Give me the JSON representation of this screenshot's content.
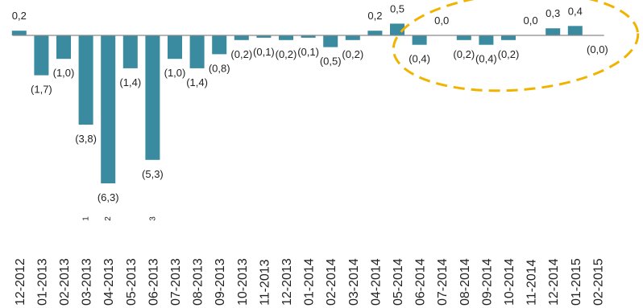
{
  "chart_data": {
    "type": "bar",
    "title": "",
    "xlabel": "",
    "ylabel": "",
    "ylim": [
      -6.3,
      0.5
    ],
    "grid": false,
    "legend": "none",
    "colors": {
      "bar": "#3a8aa0",
      "axis": "#8a8a8a",
      "highlight": "#f0b400"
    },
    "categories": [
      "12-2012",
      "01-2013",
      "02-2013",
      "03-2013",
      "04-2013",
      "05-2013",
      "06-2013",
      "07-2013",
      "08-2013",
      "09-2013",
      "10-2013",
      "11-2013",
      "12-2013",
      "01-2014",
      "02-2014",
      "03-2014",
      "04-2014",
      "05-2014",
      "06-2014",
      "07-2014",
      "08-2014",
      "09-2014",
      "10-2014",
      "11-2014",
      "12-2014",
      "01-2015",
      "02-2015"
    ],
    "values": [
      0.2,
      -1.7,
      -1.0,
      -3.8,
      -6.3,
      -1.4,
      -5.3,
      -1.0,
      -1.4,
      -0.8,
      -0.2,
      -0.1,
      -0.2,
      -0.1,
      -0.5,
      -0.2,
      0.2,
      0.5,
      -0.4,
      0.0,
      -0.2,
      -0.4,
      -0.2,
      0.0,
      0.3,
      0.4,
      0.0
    ],
    "data_labels": [
      "0,2",
      "(1,7)",
      "(1,0)",
      "(3,8)",
      "(6,3)",
      "(1,4)",
      "(5,3)",
      "(1,0)",
      "(1,4)",
      "(0,8)",
      "(0,2)",
      "(0,1)",
      "(0,2)",
      "(0,1)",
      "(0,5)",
      "(0,2)",
      "0,2",
      "0,5",
      "(0,4)",
      "0,0",
      "(0,2)",
      "(0,4)",
      "(0,2)",
      "0,0",
      "0,3",
      "0,4",
      "(0,0)"
    ],
    "footnote_markers": [
      {
        "category": "03-2013",
        "text": "1"
      },
      {
        "category": "04-2013",
        "text": "2"
      },
      {
        "category": "06-2013",
        "text": "3"
      }
    ],
    "annotation": "dashed ellipse highlighting 2014–2015 values"
  }
}
